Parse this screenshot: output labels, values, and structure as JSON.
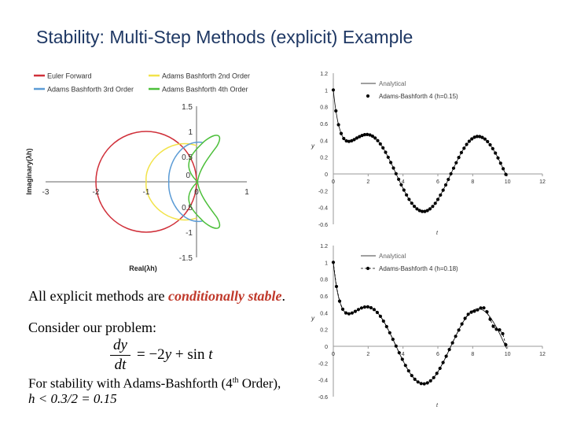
{
  "title": "Stability: Multi-Step Methods (explicit) Example",
  "text": {
    "p1_pre": "All explicit methods are ",
    "p1_em": "conditionally stable",
    "p1_post": ".",
    "p2": "Consider our problem:",
    "eq_num": "dy",
    "eq_den": "dt",
    "eq_rhs_1": "= −2",
    "eq_rhs_y": "y",
    "eq_rhs_2": " + sin ",
    "eq_rhs_t": "t",
    "p3_line1_pre": "For stability with Adams-Bashforth (4",
    "p3_line1_sup": "th",
    "p3_line1_post": " Order),",
    "p3_line2": "h < 0.3/2 = 0.15"
  },
  "colors": {
    "title": "#1f3864",
    "euler": "#d0303a",
    "ab2": "#f2e34a",
    "ab3": "#5b9bd5",
    "ab4": "#4cbf3a",
    "em": "#c0392b"
  },
  "chart_data": [
    {
      "type": "line",
      "title": "",
      "xlabel": "Real(λh)",
      "ylabel": "Imaginary(λh)",
      "xlim": [
        -3,
        1
      ],
      "ylim": [
        -1.5,
        1.5
      ],
      "x_ticks": [
        "-3",
        "-2",
        "-1",
        "0",
        "1"
      ],
      "y_ticks": [
        "1.5",
        "1",
        "0.5",
        "0",
        "0.5",
        "-1",
        "-1.5"
      ],
      "legend": [
        "Euler Forward",
        "Adams Bashforth 2nd Order",
        "Adams Bashforth 3rd Order",
        "Adams Bashforth 4th Order"
      ],
      "legend_position": "top",
      "series": [
        {
          "name": "Euler Forward",
          "shape": "circle",
          "center": [
            -1,
            0
          ],
          "radius": 1
        },
        {
          "name": "Adams Bashforth 2nd Order",
          "shape": "arc",
          "x_left": -1,
          "y_extent": [
            -0.72,
            0.72
          ]
        },
        {
          "name": "Adams Bashforth 3rd Order",
          "shape": "arc",
          "x_left": -0.55,
          "y_extent": [
            -0.72,
            0.72
          ]
        },
        {
          "name": "Adams Bashforth 4th Order",
          "shape": "lobes",
          "x_left": -0.3,
          "y_extent": [
            -0.9,
            0.9
          ]
        }
      ]
    },
    {
      "type": "line",
      "xlabel": "t",
      "ylabel": "y",
      "xlim": [
        0,
        12
      ],
      "ylim": [
        -0.6,
        1.2
      ],
      "x_ticks": [
        "0",
        "2",
        "4",
        "6",
        "8",
        "10",
        "12"
      ],
      "y_ticks": [
        "1.2",
        "1",
        "0.8",
        "0.6",
        "0.4",
        "0.2",
        "0",
        "-0.2",
        "-0.4",
        "-0.6"
      ],
      "legend": [
        "Analytical",
        "Adams-Bashforth 4 (h=0.15)"
      ],
      "legend_position": "top-right",
      "step": 0.15
    },
    {
      "type": "line",
      "xlabel": "t",
      "ylabel": "y",
      "xlim": [
        0,
        12
      ],
      "ylim": [
        -0.6,
        1.2
      ],
      "x_ticks": [
        "0",
        "2",
        "4",
        "6",
        "8",
        "10",
        "12"
      ],
      "y_ticks": [
        "1.2",
        "1",
        "0.8",
        "0.6",
        "0.4",
        "0.2",
        "0",
        "-0.2",
        "-0.4",
        "-0.6"
      ],
      "legend": [
        "Analytical",
        "Adams-Bashforth 4 (h=0.18)"
      ],
      "legend_position": "top-right",
      "step": 0.18
    }
  ]
}
